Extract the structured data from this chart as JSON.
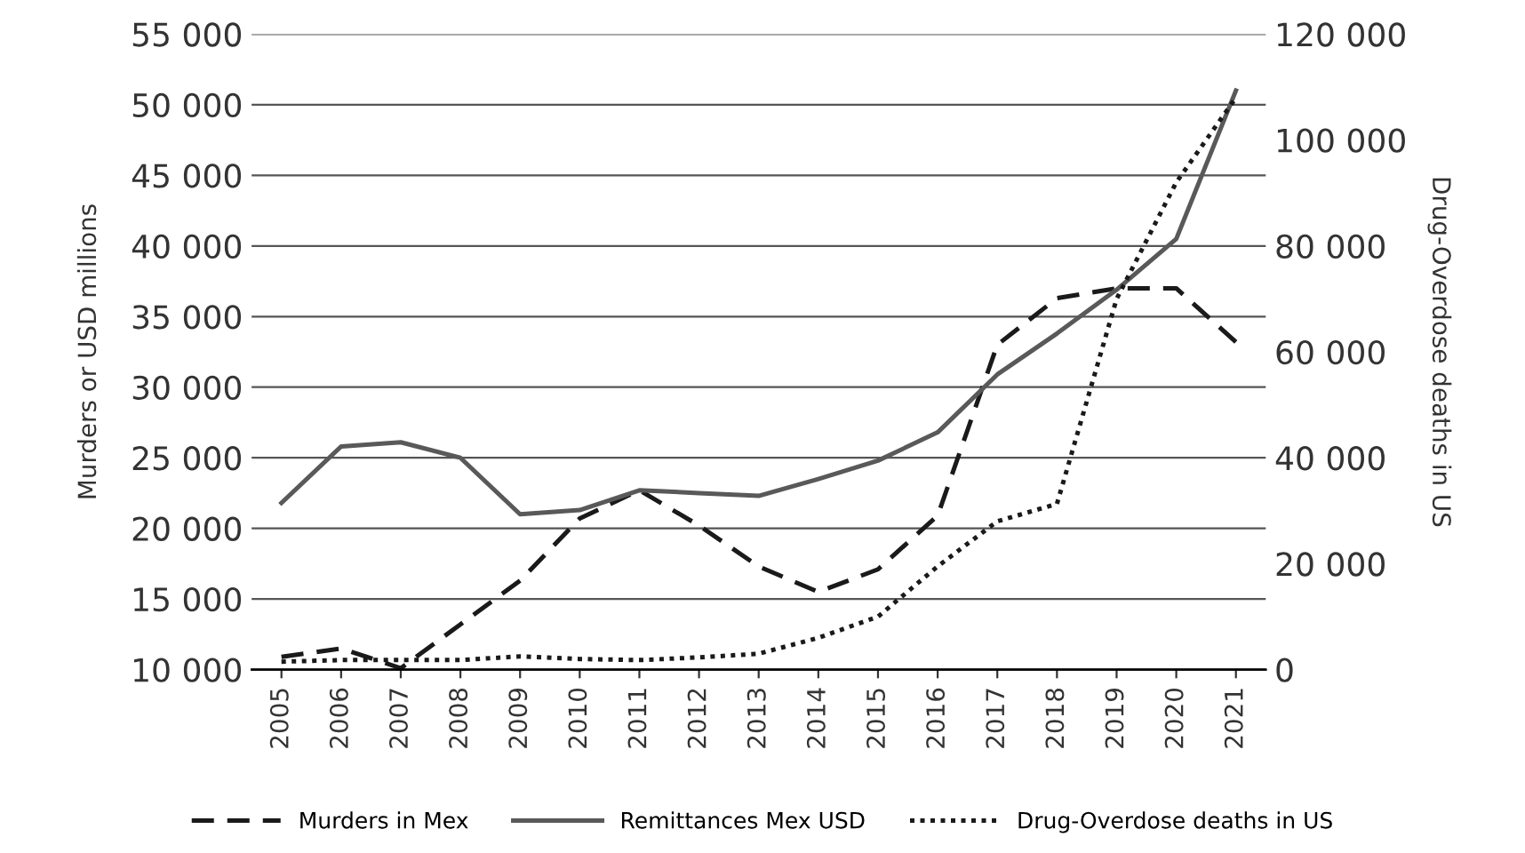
{
  "chart_data": {
    "type": "line",
    "ylabel": "Murders or USD millions",
    "y2label": "Drug-Overdose deaths in US",
    "categories": [
      "2005",
      "2006",
      "2007",
      "2008",
      "2009",
      "2010",
      "2011",
      "2012",
      "2013",
      "2014",
      "2015",
      "2016",
      "2017",
      "2018",
      "2019",
      "2020",
      "2021"
    ],
    "series": [
      {
        "name": "Murders in Mex",
        "color": "#1a1a1a",
        "line_style": "dashed",
        "values": [
          10900,
          11500,
          10100,
          13200,
          16300,
          20700,
          22700,
          20200,
          17300,
          15500,
          17100,
          20900,
          33000,
          36300,
          37000,
          37000,
          33200
        ]
      },
      {
        "name": "Remittances Mex USD",
        "color": "#595959",
        "line_style": "solid",
        "values": [
          21800,
          25800,
          26100,
          25000,
          21000,
          21300,
          22700,
          22500,
          22300,
          23500,
          24800,
          26800,
          30900,
          33800,
          36900,
          40500,
          51000
        ]
      },
      {
        "name": "Drug-Overdose deaths in US",
        "color": "#1a1a1a",
        "line_style": "dotted",
        "axis": "y2",
        "values": [
          1500,
          1800,
          1800,
          1800,
          2500,
          2000,
          1800,
          2300,
          3000,
          6000,
          10000,
          19500,
          28000,
          31300,
          70000,
          92000,
          108000
        ]
      }
    ],
    "ylim": [
      10000,
      55000
    ],
    "yticks": [
      {
        "value": 10000,
        "label": "10 000"
      },
      {
        "value": 15000,
        "label": "15 000"
      },
      {
        "value": 20000,
        "label": "20 000"
      },
      {
        "value": 25000,
        "label": "25 000"
      },
      {
        "value": 30000,
        "label": "30 000"
      },
      {
        "value": 35000,
        "label": "35 000"
      },
      {
        "value": 40000,
        "label": "40 000"
      },
      {
        "value": 45000,
        "label": "45 000"
      },
      {
        "value": 50000,
        "label": "50 000"
      },
      {
        "value": 55000,
        "label": "55 000"
      }
    ],
    "y2lim": [
      0,
      120000
    ],
    "y2ticks": [
      0,
      {
        "value": 20000,
        "label": "20 000"
      },
      {
        "value": 40000,
        "label": "40 000"
      },
      {
        "value": 60000,
        "label": "60 000"
      },
      {
        "value": 80000,
        "label": "80 000"
      },
      {
        "value": 100000,
        "label": "100 000"
      },
      {
        "value": 120000,
        "label": "120 000"
      }
    ],
    "grid": "y",
    "legend": "bottom",
    "marker": "none"
  }
}
